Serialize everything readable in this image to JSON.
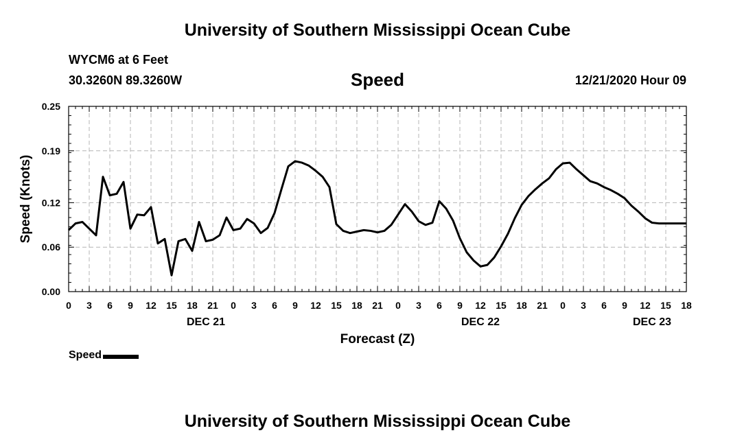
{
  "page": {
    "top_title": "University of Southern Mississippi Ocean Cube",
    "bottom_title": "University of Southern Mississippi Ocean Cube",
    "station": "WYCM6 at 6 Feet",
    "coords": "30.3260N 89.3260W",
    "timestamp": "12/21/2020 Hour 09"
  },
  "colors": {
    "line": "#000000",
    "grid": "#b4b4b4",
    "background": "#ffffff"
  },
  "chart_data": {
    "type": "line",
    "title": "Speed",
    "xlabel": "Forecast (Z)",
    "ylabel": "Speed (Knots)",
    "ylim": [
      0,
      0.25
    ],
    "xlim": [
      0,
      90
    ],
    "grid": true,
    "yticks": [
      0.0,
      0.06,
      0.12,
      0.19,
      0.25
    ],
    "ytick_labels": [
      "0.00",
      "0.06",
      "0.12",
      "0.19",
      "0.25"
    ],
    "xticks": [
      0,
      3,
      6,
      9,
      12,
      15,
      18,
      21,
      24,
      27,
      30,
      33,
      36,
      39,
      42,
      45,
      48,
      51,
      54,
      57,
      60,
      63,
      66,
      69,
      72,
      75,
      78,
      81,
      84,
      87,
      90
    ],
    "xtick_labels": [
      "0",
      "3",
      "6",
      "9",
      "12",
      "15",
      "18",
      "21",
      "0",
      "3",
      "6",
      "9",
      "12",
      "15",
      "18",
      "21",
      "0",
      "3",
      "6",
      "9",
      "12",
      "15",
      "18",
      "21",
      "0",
      "3",
      "6",
      "9",
      "12",
      "15",
      "18"
    ],
    "day_labels": [
      {
        "x": 20,
        "label": "DEC 21"
      },
      {
        "x": 60,
        "label": "DEC 22"
      },
      {
        "x": 85,
        "label": "DEC 23"
      }
    ],
    "legend": {
      "label": "Speed",
      "position": "bottom-left"
    },
    "series": [
      {
        "name": "Speed",
        "x": [
          0,
          1,
          2,
          3,
          4,
          5,
          6,
          7,
          8,
          9,
          10,
          11,
          12,
          13,
          14,
          15,
          16,
          17,
          18,
          19,
          20,
          21,
          22,
          23,
          24,
          25,
          26,
          27,
          28,
          29,
          30,
          31,
          32,
          33,
          34,
          35,
          36,
          37,
          38,
          39,
          40,
          41,
          42,
          43,
          44,
          45,
          46,
          47,
          48,
          49,
          50,
          51,
          52,
          53,
          54,
          55,
          56,
          57,
          58,
          59,
          60,
          61,
          62,
          63,
          64,
          65,
          66,
          67,
          68,
          69,
          70,
          71,
          72,
          73,
          74,
          75,
          76,
          77,
          78,
          79,
          80,
          81,
          82,
          83,
          84,
          85,
          86,
          87,
          88,
          89,
          90
        ],
        "values": [
          0.083,
          0.092,
          0.094,
          0.085,
          0.076,
          0.155,
          0.13,
          0.132,
          0.148,
          0.085,
          0.104,
          0.103,
          0.114,
          0.065,
          0.071,
          0.022,
          0.068,
          0.071,
          0.055,
          0.094,
          0.068,
          0.07,
          0.076,
          0.1,
          0.083,
          0.085,
          0.098,
          0.092,
          0.079,
          0.086,
          0.106,
          0.138,
          0.169,
          0.176,
          0.174,
          0.17,
          0.163,
          0.155,
          0.141,
          0.091,
          0.082,
          0.079,
          0.081,
          0.083,
          0.082,
          0.08,
          0.082,
          0.09,
          0.104,
          0.118,
          0.108,
          0.095,
          0.09,
          0.093,
          0.122,
          0.112,
          0.096,
          0.072,
          0.053,
          0.042,
          0.034,
          0.036,
          0.046,
          0.061,
          0.078,
          0.099,
          0.117,
          0.129,
          0.138,
          0.146,
          0.153,
          0.165,
          0.173,
          0.174,
          0.165,
          0.157,
          0.149,
          0.146,
          0.141,
          0.137,
          0.132,
          0.126,
          0.116,
          0.108,
          0.099,
          0.093,
          0.092,
          0.092,
          0.092,
          0.092,
          0.092
        ]
      }
    ]
  }
}
